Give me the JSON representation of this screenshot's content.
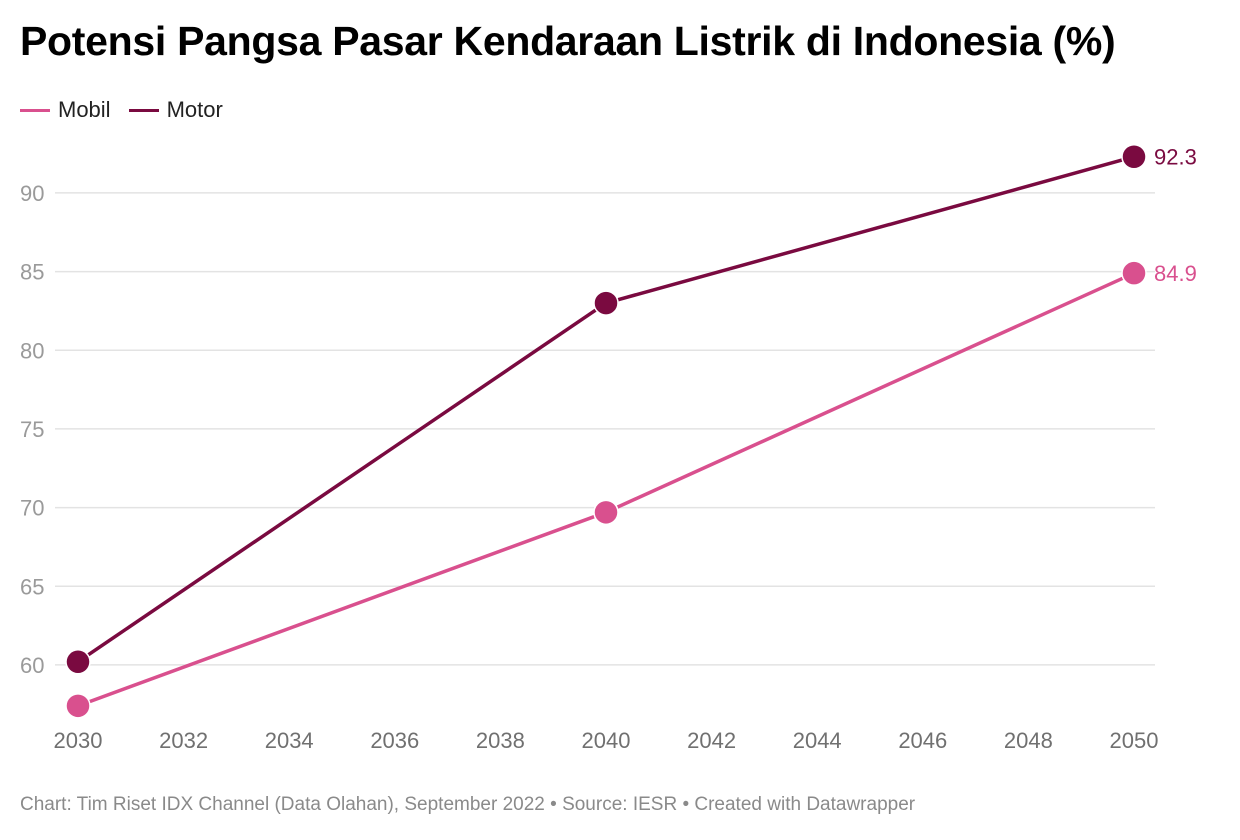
{
  "title": "Potensi Pangsa Pasar Kendaraan Listrik di Indonesia (%)",
  "footer": "Chart: Tim Riset IDX Channel (Data Olahan), September 2022 • Source: IESR • Created with Datawrapper",
  "chart_data": {
    "type": "line",
    "title": "Potensi Pangsa Pasar Kendaraan Listrik di Indonesia (%)",
    "xlabel": "",
    "ylabel": "",
    "x": [
      2030,
      2040,
      2050
    ],
    "series": [
      {
        "name": "Mobil",
        "color": "#d9508e",
        "values": [
          57.4,
          69.7,
          84.9
        ],
        "end_label": "84.9"
      },
      {
        "name": "Motor",
        "color": "#7a0a40",
        "values": [
          60.2,
          83.0,
          92.3
        ],
        "end_label": "92.3"
      }
    ],
    "x_ticks": [
      "2030",
      "2032",
      "2034",
      "2036",
      "2038",
      "2040",
      "2042",
      "2044",
      "2046",
      "2048",
      "2050"
    ],
    "y_ticks": [
      "60",
      "65",
      "70",
      "75",
      "80",
      "85",
      "90"
    ],
    "xlim": [
      2030,
      2050
    ],
    "ylim": [
      56.5,
      94
    ],
    "grid": "horizontal",
    "legend_position": "top-left"
  }
}
